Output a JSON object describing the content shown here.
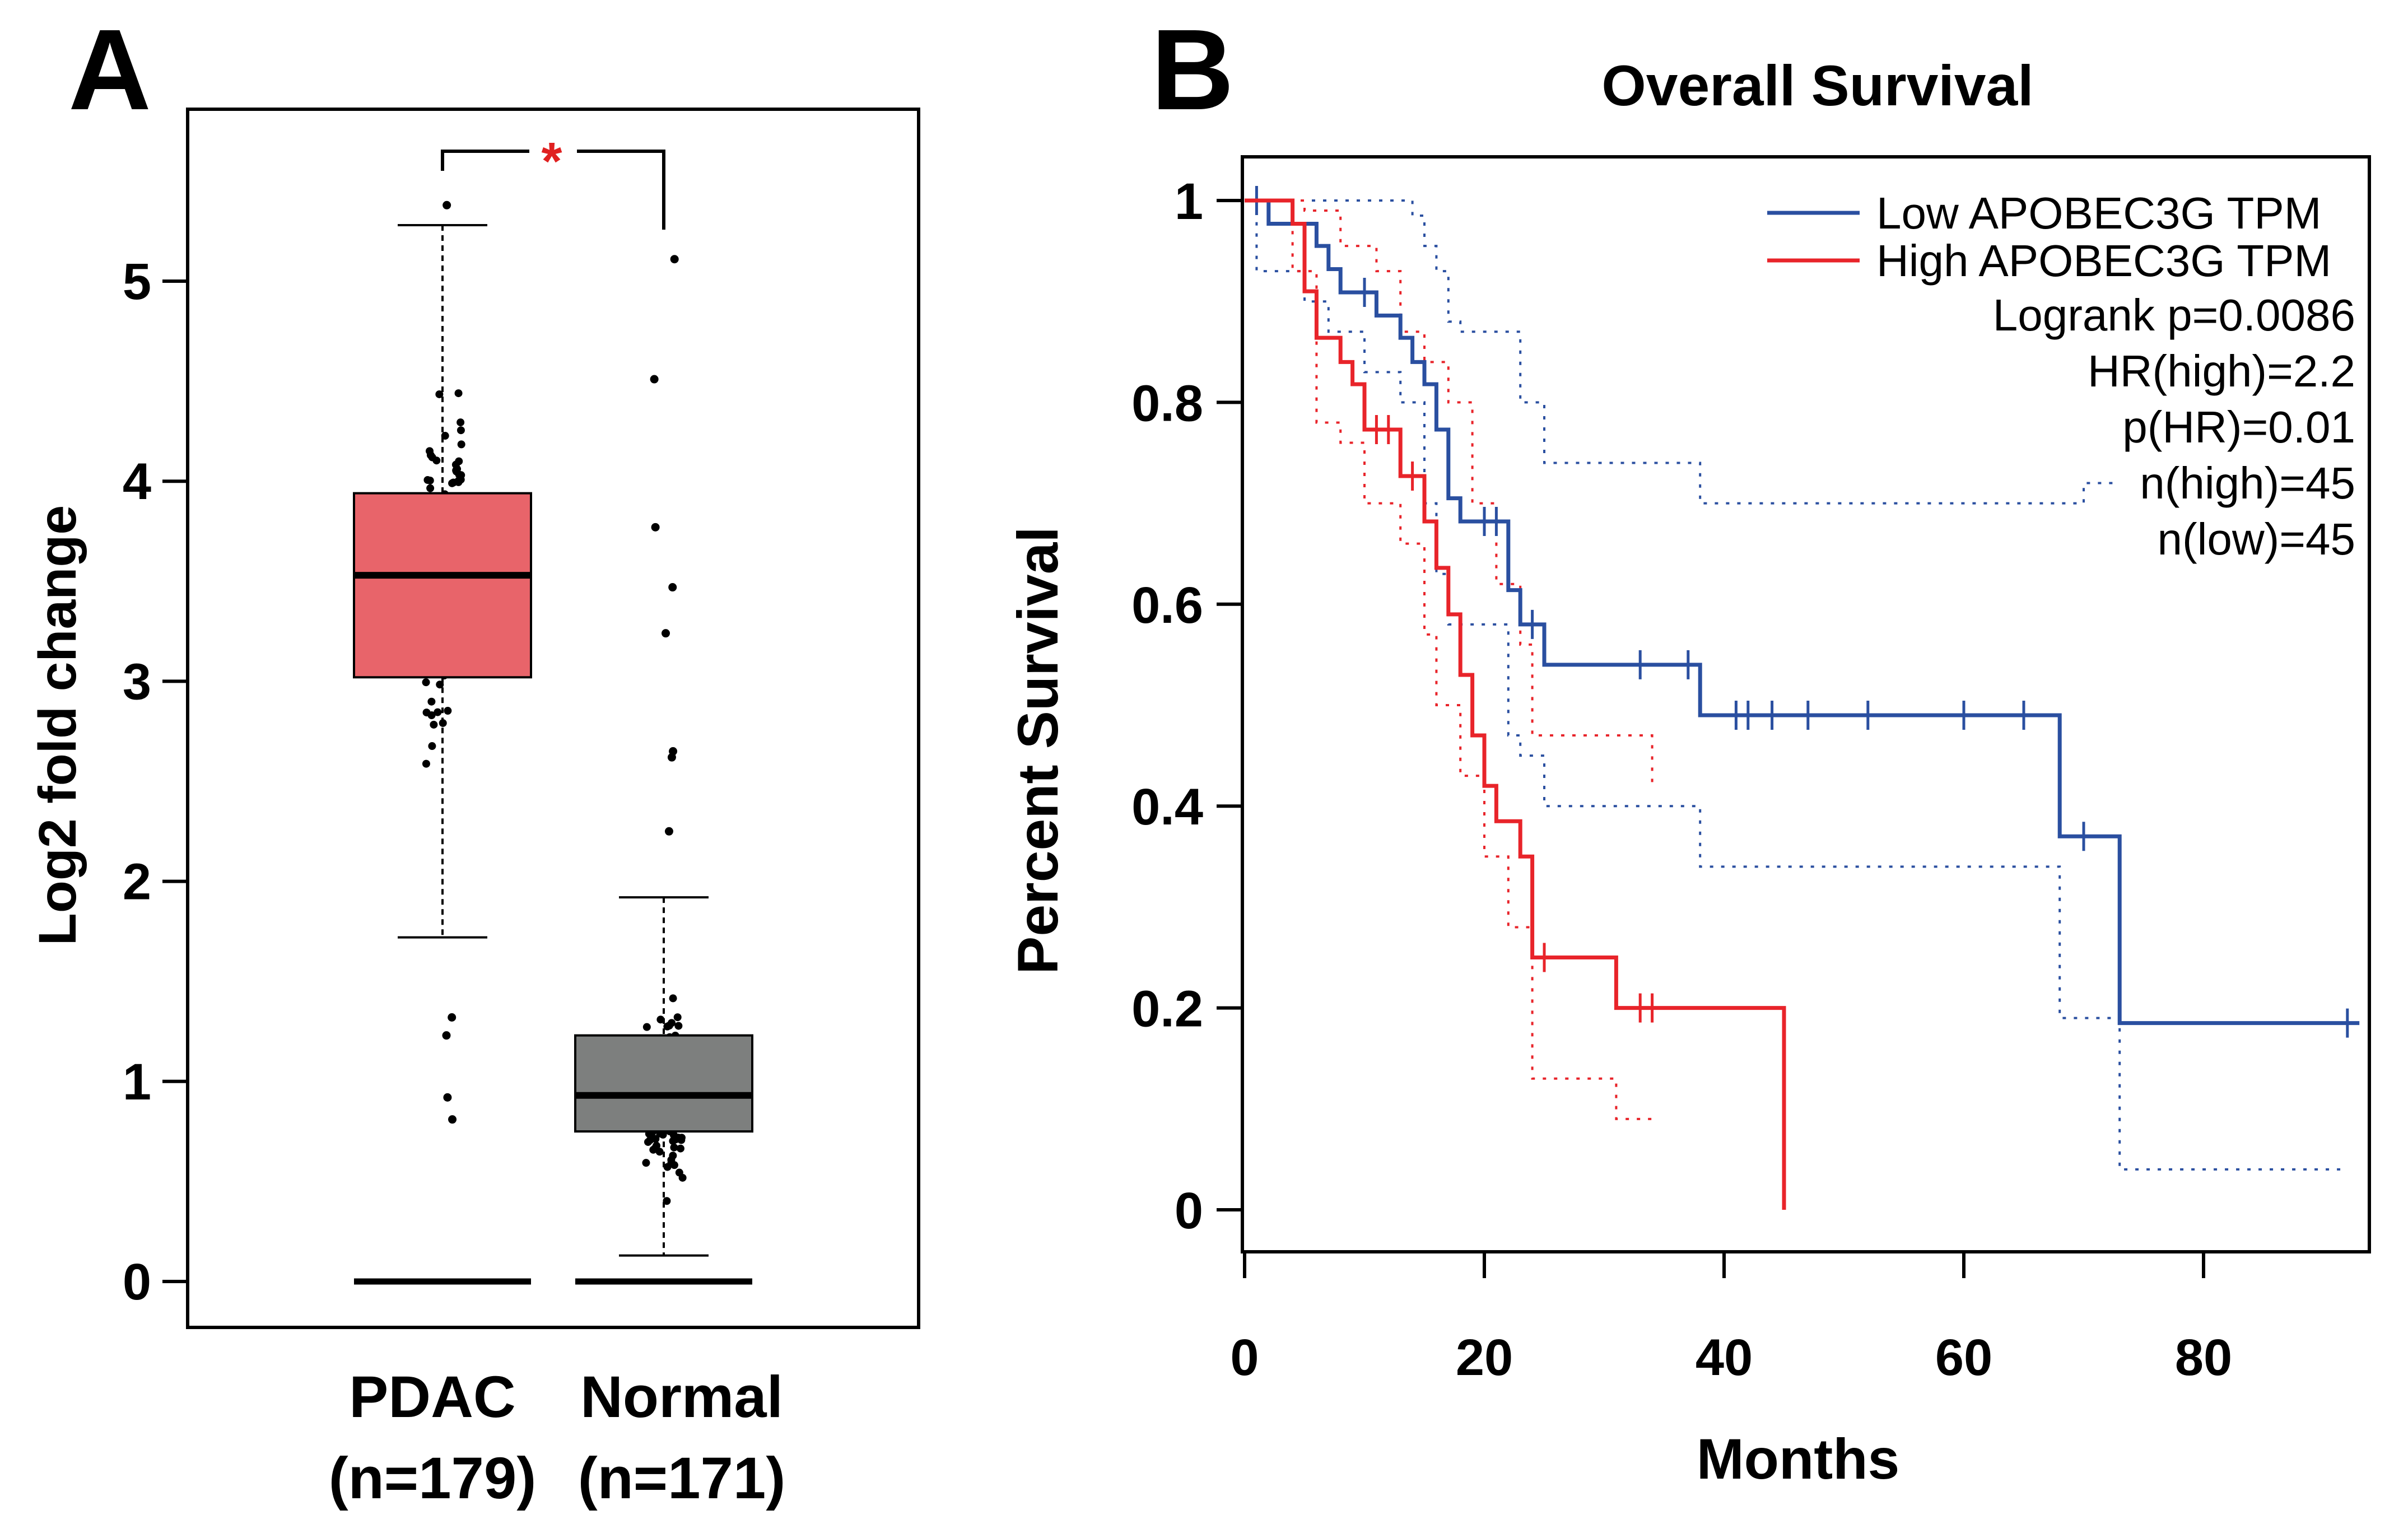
{
  "panel_a": {
    "letter": "A",
    "ylabel": "Log2 fold change",
    "significance": "*",
    "colors": {
      "pdac": "#e8646a",
      "normal": "#7d7f7e",
      "star": "#e02020",
      "dots": "#000000"
    },
    "groups": [
      {
        "name": "PDAC",
        "n_label": "(n=179)"
      },
      {
        "name": "Normal",
        "n_label": "(n=171)"
      }
    ]
  },
  "panel_b": {
    "letter": "B",
    "title": "Overall Survival",
    "xlabel": "Months",
    "ylabel": "Percent Survival",
    "legend": {
      "low": "Low APOBEC3G TPM",
      "high": "High APOBEC3G TPM",
      "stats": [
        "Logrank p=0.0086",
        "HR(high)=2.2",
        "p(HR)=0.01",
        "n(high)=45",
        "n(low)=45"
      ]
    },
    "colors": {
      "low": "#2a4fa0",
      "high": "#e8242a"
    }
  },
  "chart_data": [
    {
      "type": "box",
      "title": "",
      "ylabel": "Log2 fold change",
      "ylim": [
        0,
        5.7
      ],
      "yticks": [
        0,
        1,
        2,
        3,
        4,
        5
      ],
      "categories": [
        "PDAC",
        "Normal"
      ],
      "boxes": [
        {
          "name": "PDAC",
          "n": 179,
          "whisker_low": 1.72,
          "q1": 3.02,
          "median": 3.53,
          "q3": 3.94,
          "whisker_high": 5.28,
          "outliers": [
            1.32,
            1.23,
            0.92,
            0.81,
            5.38
          ]
        },
        {
          "name": "Normal",
          "n": 171,
          "whisker_low": 0.13,
          "q1": 0.75,
          "median": 0.93,
          "q3": 1.23,
          "whisker_high": 1.92,
          "outliers": [
            2.25,
            2.62,
            2.65,
            3.24,
            3.47,
            3.77,
            4.51,
            5.11
          ]
        }
      ],
      "annotation": "*"
    },
    {
      "type": "line",
      "subtype": "kaplan-meier",
      "title": "Overall Survival",
      "xlabel": "Months",
      "ylabel": "Percent Survival",
      "xlim": [
        0,
        93
      ],
      "ylim": [
        0,
        1.04
      ],
      "xticks": [
        0,
        20,
        40,
        60,
        80
      ],
      "yticks": [
        0,
        0.2,
        0.4,
        0.6,
        0.8,
        1
      ],
      "series": [
        {
          "name": "Low APOBEC3G TPM",
          "steps": [
            [
              0,
              1
            ],
            [
              2,
              0.977
            ],
            [
              6,
              0.955
            ],
            [
              7,
              0.932
            ],
            [
              8,
              0.909
            ],
            [
              11,
              0.886
            ],
            [
              13,
              0.864
            ],
            [
              14,
              0.84
            ],
            [
              15,
              0.818
            ],
            [
              16,
              0.773
            ],
            [
              17,
              0.705
            ],
            [
              18,
              0.682
            ],
            [
              22,
              0.614
            ],
            [
              23,
              0.58
            ],
            [
              25,
              0.54
            ],
            [
              38,
              0.49
            ],
            [
              68,
              0.37
            ],
            [
              73,
              0.185
            ],
            [
              93,
              0.185
            ]
          ],
          "censor": [
            [
              1,
              1
            ],
            [
              10,
              0.909
            ],
            [
              20,
              0.682
            ],
            [
              21,
              0.682
            ],
            [
              24,
              0.58
            ],
            [
              33,
              0.54
            ],
            [
              37,
              0.54
            ],
            [
              41,
              0.49
            ],
            [
              42,
              0.49
            ],
            [
              44,
              0.49
            ],
            [
              47,
              0.49
            ],
            [
              52,
              0.49
            ],
            [
              60,
              0.49
            ],
            [
              65,
              0.49
            ],
            [
              70,
              0.37
            ],
            [
              92,
              0.185
            ]
          ],
          "ci_upper": [
            [
              0,
              1
            ],
            [
              5,
              1
            ],
            [
              10,
              1
            ],
            [
              14,
              0.985
            ],
            [
              15,
              0.955
            ],
            [
              16,
              0.93
            ],
            [
              17,
              0.88
            ],
            [
              18,
              0.87
            ],
            [
              22,
              0.87
            ],
            [
              23,
              0.8
            ],
            [
              25,
              0.74
            ],
            [
              38,
              0.7
            ],
            [
              68,
              0.7
            ],
            [
              70,
              0.72
            ],
            [
              73,
              0.72
            ]
          ],
          "ci_lower": [
            [
              0,
              1
            ],
            [
              1,
              0.93
            ],
            [
              5,
              0.9
            ],
            [
              7,
              0.87
            ],
            [
              10,
              0.83
            ],
            [
              13,
              0.8
            ],
            [
              15,
              0.7
            ],
            [
              16,
              0.63
            ],
            [
              17,
              0.58
            ],
            [
              22,
              0.47
            ],
            [
              23,
              0.45
            ],
            [
              25,
              0.4
            ],
            [
              38,
              0.34
            ],
            [
              68,
              0.19
            ],
            [
              73,
              0.04
            ],
            [
              92,
              0.04
            ]
          ]
        },
        {
          "name": "High APOBEC3G TPM",
          "steps": [
            [
              0,
              1
            ],
            [
              4,
              0.977
            ],
            [
              5,
              0.91
            ],
            [
              6,
              0.864
            ],
            [
              8,
              0.84
            ],
            [
              9,
              0.818
            ],
            [
              10,
              0.773
            ],
            [
              13,
              0.727
            ],
            [
              15,
              0.682
            ],
            [
              16,
              0.636
            ],
            [
              17,
              0.59
            ],
            [
              18,
              0.53
            ],
            [
              19,
              0.47
            ],
            [
              20,
              0.42
            ],
            [
              21,
              0.385
            ],
            [
              23,
              0.35
            ],
            [
              24,
              0.25
            ],
            [
              31,
              0.2
            ],
            [
              45,
              0.2
            ],
            [
              45,
              0
            ]
          ],
          "censor": [
            [
              11,
              0.773
            ],
            [
              12,
              0.773
            ],
            [
              14,
              0.727
            ],
            [
              25,
              0.25
            ],
            [
              33,
              0.2
            ],
            [
              34,
              0.2
            ]
          ],
          "ci_upper": [
            [
              0,
              1
            ],
            [
              3,
              1
            ],
            [
              5,
              0.99
            ],
            [
              8,
              0.955
            ],
            [
              11,
              0.93
            ],
            [
              13,
              0.87
            ],
            [
              15,
              0.84
            ],
            [
              17,
              0.8
            ],
            [
              19,
              0.7
            ],
            [
              21,
              0.62
            ],
            [
              23,
              0.56
            ],
            [
              24,
              0.47
            ],
            [
              31,
              0.47
            ],
            [
              34,
              0.42
            ]
          ],
          "ci_lower": [
            [
              0,
              1
            ],
            [
              4,
              0.93
            ],
            [
              6,
              0.78
            ],
            [
              8,
              0.76
            ],
            [
              10,
              0.7
            ],
            [
              13,
              0.66
            ],
            [
              15,
              0.57
            ],
            [
              16,
              0.5
            ],
            [
              18,
              0.43
            ],
            [
              20,
              0.35
            ],
            [
              22,
              0.28
            ],
            [
              24,
              0.13
            ],
            [
              31,
              0.09
            ],
            [
              34,
              0.09
            ]
          ]
        }
      ]
    }
  ]
}
